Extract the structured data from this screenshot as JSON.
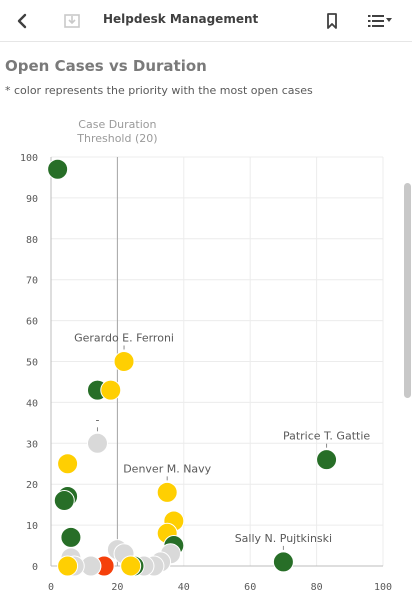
{
  "app": {
    "title": "Helpdesk Management"
  },
  "icons": {
    "back": "back-arrow-icon",
    "download": "download-icon",
    "bookmark": "bookmark-icon",
    "menu": "list-menu-icon"
  },
  "sheet": {
    "title": "Open Cases vs Duration",
    "subtitle": "* color represents the priority with the most open cases"
  },
  "colors": {
    "high": "#f5400b",
    "medium": "#ffcf02",
    "low": "#276e27",
    "none": "#d9d9d9"
  },
  "chart_data": {
    "type": "scatter",
    "xlim": [
      0,
      100
    ],
    "ylim": [
      0,
      100
    ],
    "x_ticks": [
      0,
      20,
      40,
      60,
      80,
      100
    ],
    "y_ticks": [
      0,
      10,
      20,
      30,
      40,
      50,
      60,
      70,
      80,
      90,
      100
    ],
    "reference_line": {
      "x": 20,
      "label": "Case Duration Threshold (20)"
    },
    "grid": true,
    "points": [
      {
        "x": 2,
        "y": 97,
        "priority": "low"
      },
      {
        "x": 22,
        "y": 50,
        "priority": "medium",
        "label": "Gerardo E. Ferroni"
      },
      {
        "x": 14,
        "y": 43,
        "priority": "low"
      },
      {
        "x": 18,
        "y": 43,
        "priority": "medium"
      },
      {
        "x": 14,
        "y": 30,
        "priority": "none",
        "label": "-"
      },
      {
        "x": 5,
        "y": 25,
        "priority": "medium"
      },
      {
        "x": 83,
        "y": 26,
        "priority": "low",
        "label": "Patrice T. Gattie"
      },
      {
        "x": 5,
        "y": 17,
        "priority": "low"
      },
      {
        "x": 4,
        "y": 16,
        "priority": "low"
      },
      {
        "x": 35,
        "y": 18,
        "priority": "medium",
        "label": "Denver M. Navy"
      },
      {
        "x": 37,
        "y": 11,
        "priority": "medium"
      },
      {
        "x": 35,
        "y": 8,
        "priority": "medium"
      },
      {
        "x": 37,
        "y": 5,
        "priority": "low"
      },
      {
        "x": 6,
        "y": 7,
        "priority": "low"
      },
      {
        "x": 20,
        "y": 4,
        "priority": "none"
      },
      {
        "x": 22,
        "y": 3,
        "priority": "none"
      },
      {
        "x": 36,
        "y": 3,
        "priority": "none"
      },
      {
        "x": 6,
        "y": 2,
        "priority": "none"
      },
      {
        "x": 70,
        "y": 1,
        "priority": "low",
        "label": "Sally N. Pujtkinski"
      },
      {
        "x": 33,
        "y": 1,
        "priority": "none"
      },
      {
        "x": 31,
        "y": 0,
        "priority": "none"
      },
      {
        "x": 28,
        "y": 0,
        "priority": "none"
      },
      {
        "x": 25,
        "y": 0,
        "priority": "low"
      },
      {
        "x": 24,
        "y": 0,
        "priority": "medium"
      },
      {
        "x": 16,
        "y": 0,
        "priority": "high"
      },
      {
        "x": 12,
        "y": 0,
        "priority": "high"
      },
      {
        "x": 12,
        "y": 0,
        "priority": "none"
      },
      {
        "x": 7,
        "y": 0,
        "priority": "none"
      },
      {
        "x": 5,
        "y": 0,
        "priority": "medium"
      }
    ]
  }
}
